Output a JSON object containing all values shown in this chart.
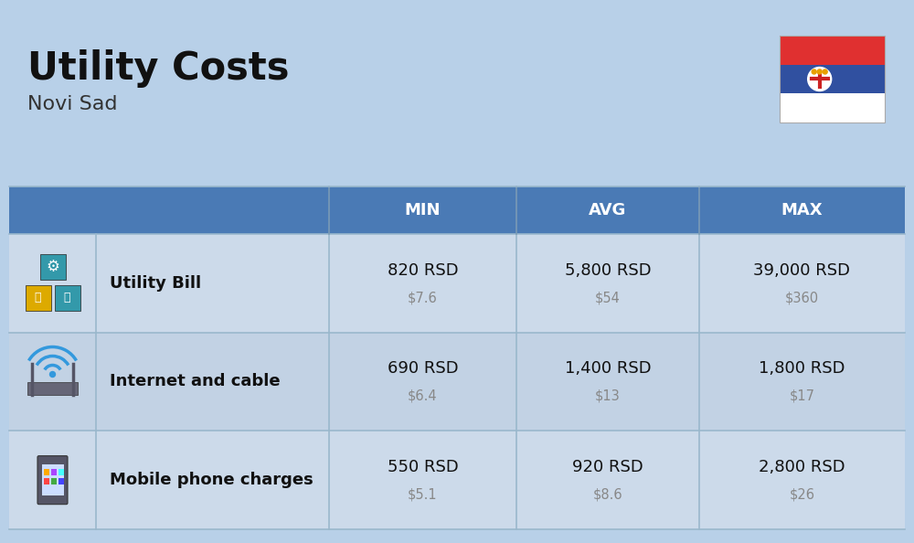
{
  "title": "Utility Costs",
  "subtitle": "Novi Sad",
  "bg_color": "#b8d0e8",
  "header_color": "#4a7ab5",
  "header_text_color": "#ffffff",
  "row_color_1": "#ccdaea",
  "row_color_2": "#bfcfdf",
  "separator_color": "#b0c8de",
  "col_headers": [
    "MIN",
    "AVG",
    "MAX"
  ],
  "rows": [
    {
      "label": "Utility Bill",
      "min_rsd": "820 RSD",
      "min_usd": "$7.6",
      "avg_rsd": "5,800 RSD",
      "avg_usd": "$54",
      "max_rsd": "39,000 RSD",
      "max_usd": "$360"
    },
    {
      "label": "Internet and cable",
      "min_rsd": "690 RSD",
      "min_usd": "$6.4",
      "avg_rsd": "1,400 RSD",
      "avg_usd": "$13",
      "max_rsd": "1,800 RSD",
      "max_usd": "$17"
    },
    {
      "label": "Mobile phone charges",
      "min_rsd": "550 RSD",
      "min_usd": "$5.1",
      "avg_rsd": "920 RSD",
      "avg_usd": "$8.6",
      "max_rsd": "2,800 RSD",
      "max_usd": "$26"
    }
  ],
  "flag_colors": [
    "#E03030",
    "#3050A0",
    "#FFFFFF"
  ],
  "title_fontsize": 30,
  "subtitle_fontsize": 16,
  "header_fontsize": 13,
  "label_fontsize": 13,
  "value_fontsize": 13,
  "usd_fontsize": 10.5
}
